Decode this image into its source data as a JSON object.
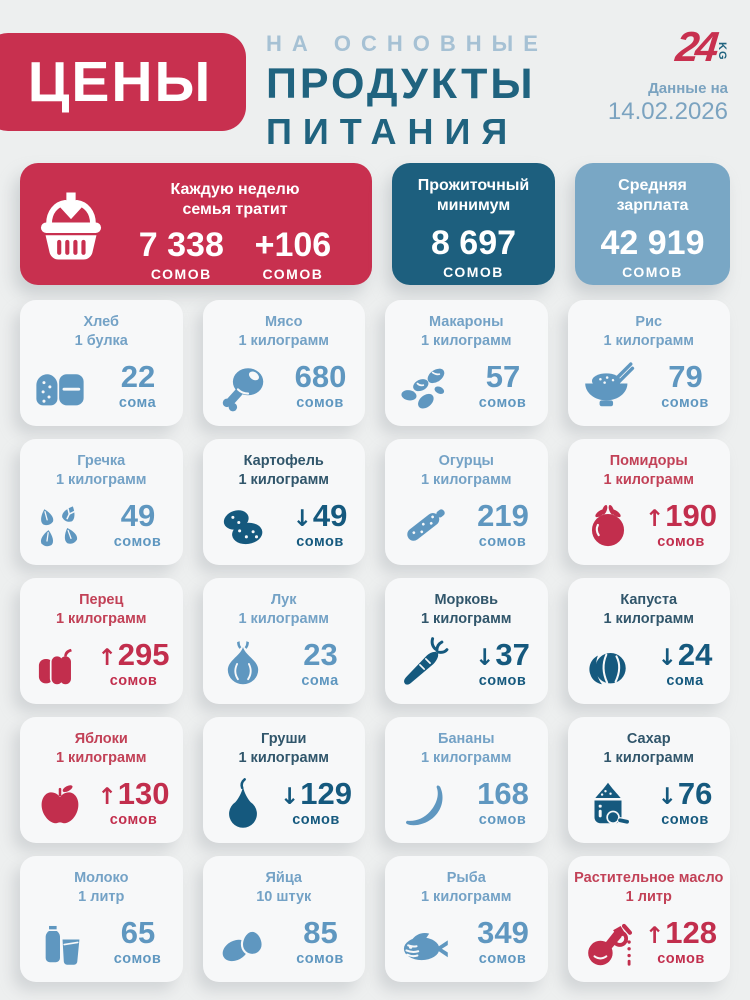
{
  "header": {
    "badge": "ЦЕНЫ",
    "subtitle_top": "НА ОСНОВНЫЕ",
    "subtitle_mid": "ПРОДУКТЫ",
    "subtitle_bottom": "ПИТАНИЯ",
    "logo_number": "24",
    "logo_suffix": "KG",
    "date_label": "Данные на",
    "date_value": "14.02.2026"
  },
  "summary": [
    {
      "id": "weekly-family-spend",
      "title_line1": "Каждую неделю",
      "title_line2": "семья тратит",
      "value": "7 338",
      "unit": "СОМОВ",
      "delta": "+106",
      "delta_unit": "СОМОВ",
      "icon": "basket",
      "bg": "#c8304f"
    },
    {
      "id": "living-minimum",
      "title_line1": "Прожиточный",
      "title_line2": "минимум",
      "value": "8 697",
      "unit": "СОМОВ",
      "bg": "#1d5f7e"
    },
    {
      "id": "average-salary",
      "title_line1": "Средняя",
      "title_line2": "зарплата",
      "value": "42 919",
      "unit": "СОМОВ",
      "bg": "#79a7c5"
    }
  ],
  "products": [
    {
      "name": "Хлеб",
      "quantity": "1 булка",
      "price": "22",
      "unit": "сома",
      "trend": "none",
      "icon": "bread"
    },
    {
      "name": "Мясо",
      "quantity": "1 килограмм",
      "price": "680",
      "unit": "сомов",
      "trend": "none",
      "icon": "meat"
    },
    {
      "name": "Макароны",
      "quantity": "1 килограмм",
      "price": "57",
      "unit": "сомов",
      "trend": "none",
      "icon": "pasta"
    },
    {
      "name": "Рис",
      "quantity": "1 килограмм",
      "price": "79",
      "unit": "сомов",
      "trend": "none",
      "icon": "rice"
    },
    {
      "name": "Гречка",
      "quantity": "1 килограмм",
      "price": "49",
      "unit": "сомов",
      "trend": "none",
      "icon": "buckwheat"
    },
    {
      "name": "Картофель",
      "quantity": "1 килограмм",
      "price": "49",
      "unit": "сомов",
      "trend": "down",
      "icon": "potato"
    },
    {
      "name": "Огурцы",
      "quantity": "1 килограмм",
      "price": "219",
      "unit": "сомов",
      "trend": "none",
      "icon": "cucumber"
    },
    {
      "name": "Помидоры",
      "quantity": "1 килограмм",
      "price": "190",
      "unit": "сомов",
      "trend": "up",
      "icon": "tomato"
    },
    {
      "name": "Перец",
      "quantity": "1 килограмм",
      "price": "295",
      "unit": "сомов",
      "trend": "up",
      "icon": "pepper"
    },
    {
      "name": "Лук",
      "quantity": "1 килограмм",
      "price": "23",
      "unit": "сома",
      "trend": "none",
      "icon": "onion"
    },
    {
      "name": "Морковь",
      "quantity": "1 килограмм",
      "price": "37",
      "unit": "сомов",
      "trend": "down",
      "icon": "carrot"
    },
    {
      "name": "Капуста",
      "quantity": "1 килограмм",
      "price": "24",
      "unit": "сома",
      "trend": "down",
      "icon": "cabbage"
    },
    {
      "name": "Яблоки",
      "quantity": "1 килограмм",
      "price": "130",
      "unit": "сомов",
      "trend": "up",
      "icon": "apple"
    },
    {
      "name": "Груши",
      "quantity": "1 килограмм",
      "price": "129",
      "unit": "сомов",
      "trend": "down",
      "icon": "pear"
    },
    {
      "name": "Бананы",
      "quantity": "1 килограмм",
      "price": "168",
      "unit": "сомов",
      "trend": "none",
      "icon": "banana"
    },
    {
      "name": "Сахар",
      "quantity": "1 килограмм",
      "price": "76",
      "unit": "сомов",
      "trend": "down",
      "icon": "sugar"
    },
    {
      "name": "Молоко",
      "quantity": "1 литр",
      "price": "65",
      "unit": "сомов",
      "trend": "none",
      "icon": "milk"
    },
    {
      "name": "Яйца",
      "quantity": "10 штук",
      "price": "85",
      "unit": "сомов",
      "trend": "none",
      "icon": "eggs"
    },
    {
      "name": "Рыба",
      "quantity": "1 килограмм",
      "price": "349",
      "unit": "сомов",
      "trend": "none",
      "icon": "fish"
    },
    {
      "name": "Растительное масло",
      "quantity": "1 литр",
      "price": "128",
      "unit": "сомов",
      "trend": "up",
      "icon": "oil"
    }
  ],
  "colors": {
    "background": "#edefef",
    "card": "#f7f8f9",
    "accent_red": "#c8304f",
    "dark_teal": "#1d5f7e",
    "light_blue": "#79a7c5",
    "price_up": "#c22e4d",
    "price_down": "#15597e",
    "price_neutral": "#5f97c0"
  },
  "trend_arrows": {
    "up": "↑",
    "down": "↓"
  }
}
